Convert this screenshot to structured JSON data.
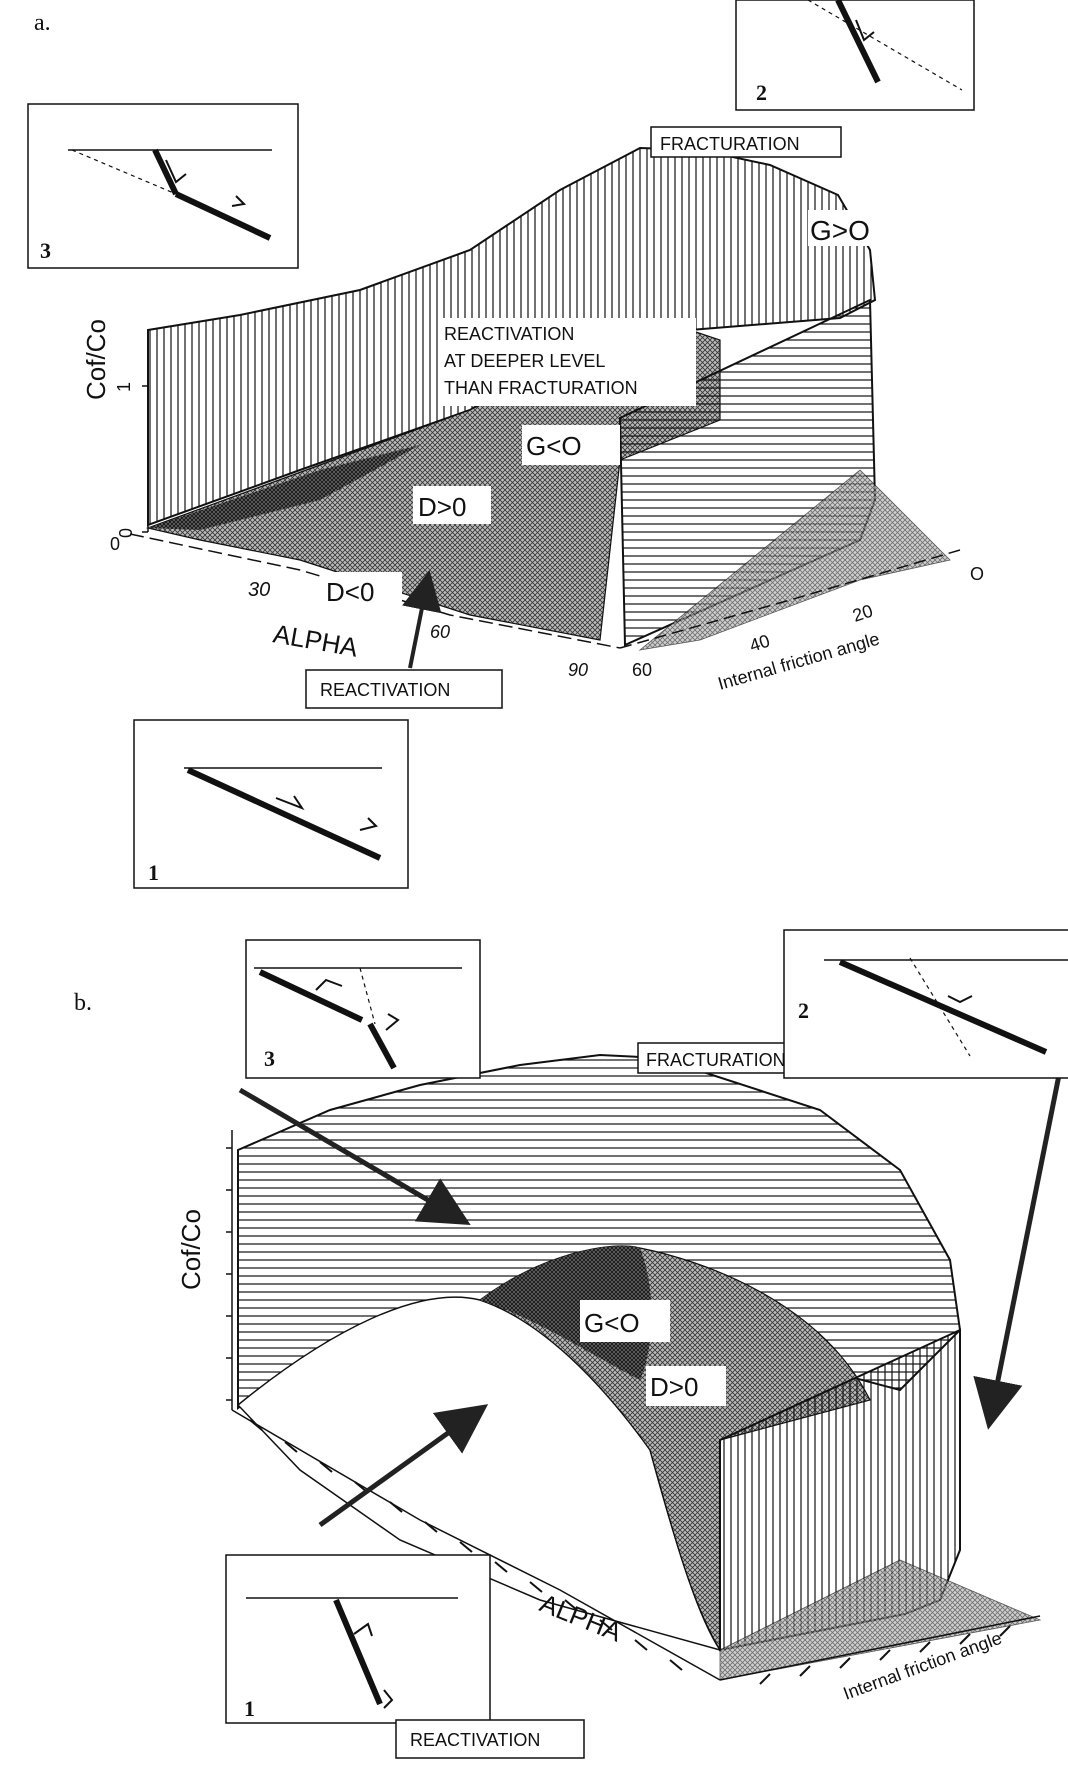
{
  "panel_a": {
    "label": "a.",
    "fracturation_label": "FRACTURATION",
    "g_gt_0": "G>O",
    "deeper": [
      "REACTIVATION",
      "AT DEEPER LEVEL",
      "THAN FRACTURATION"
    ],
    "g_lt_0": "G<O",
    "d_gt_0": "D>0",
    "d_lt_0": "D<0",
    "y_axis_label": "Cof/Co",
    "y_ticks": [
      "0",
      "1"
    ],
    "y_origin": "0",
    "x_axis_label": "ALPHA",
    "x_ticks": [
      "30",
      "60",
      "90"
    ],
    "z_axis_label": "Internal friction angle",
    "z_ticks": [
      "60",
      "40",
      "20",
      "O"
    ],
    "reactivation_label": "REACTIVATION",
    "insets": [
      {
        "number": "1"
      },
      {
        "number": "2"
      },
      {
        "number": "3"
      }
    ]
  },
  "panel_b": {
    "label": "b.",
    "fracturation_label": "FRACTURATION",
    "g_lt_0": "G<O",
    "d_gt_0": "D>0",
    "y_axis_label": "Cof/Co",
    "x_axis_label": "ALPHA",
    "z_axis_label": "Internal friction angle",
    "reactivation_label": "REACTIVATION",
    "insets": [
      {
        "number": "1"
      },
      {
        "number": "2"
      },
      {
        "number": "3"
      }
    ]
  },
  "colors": {
    "ink": "#111111",
    "paper": "#ffffff",
    "shade": "#555555"
  }
}
